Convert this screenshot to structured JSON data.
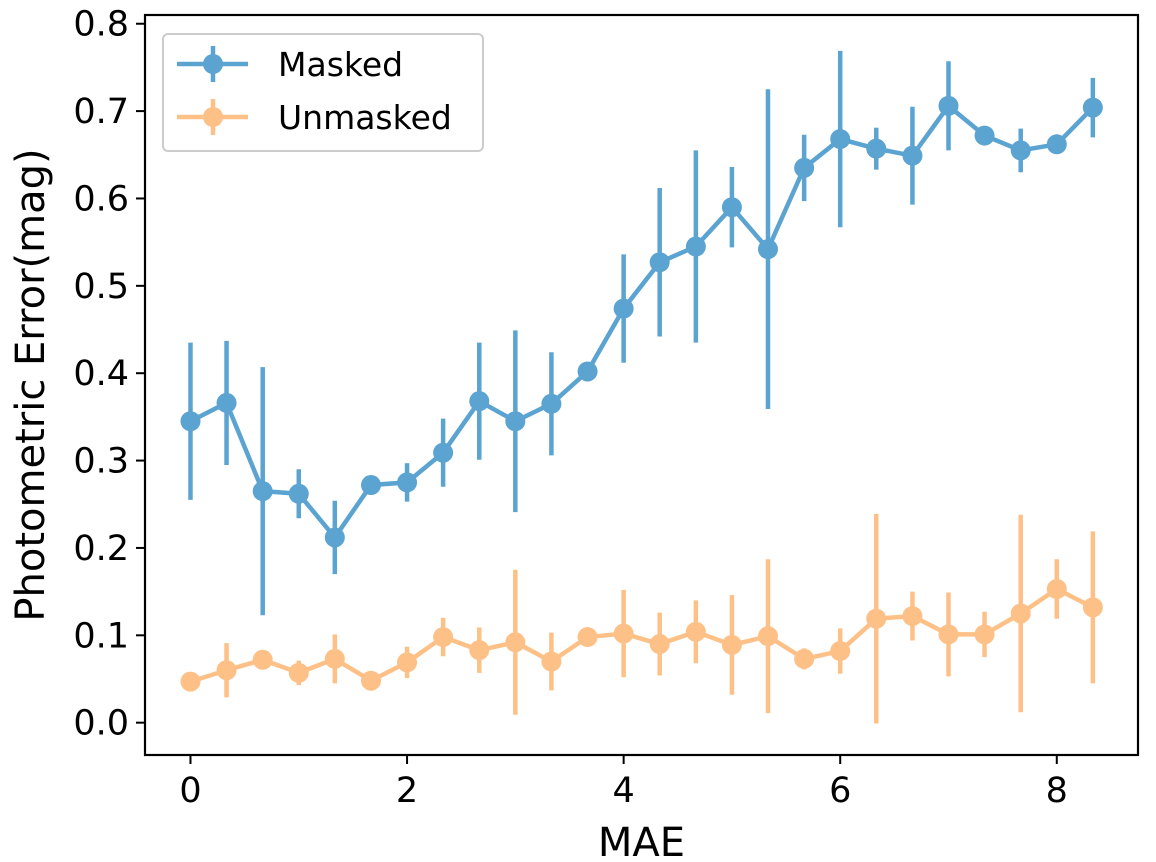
{
  "chart_data": {
    "type": "line",
    "xlabel": "MAE",
    "ylabel": "Photometric Error(mag)",
    "xlim": [
      -0.42,
      8.75
    ],
    "ylim": [
      -0.037,
      0.81
    ],
    "xticks": [
      0,
      2,
      4,
      6,
      8
    ],
    "yticks": [
      0.0,
      0.1,
      0.2,
      0.3,
      0.4,
      0.5,
      0.6,
      0.7,
      0.8
    ],
    "ytick_labels": [
      "0.0",
      "0.1",
      "0.2",
      "0.3",
      "0.4",
      "0.5",
      "0.6",
      "0.7",
      "0.8"
    ],
    "grid": false,
    "legend_position": "top-left",
    "x": [
      0,
      0.333,
      0.667,
      1.0,
      1.333,
      1.667,
      2.0,
      2.333,
      2.667,
      3.0,
      3.333,
      3.667,
      4.0,
      4.333,
      4.667,
      5.0,
      5.333,
      5.667,
      6.0,
      6.333,
      6.667,
      7.0,
      7.333,
      7.667,
      8.0,
      8.333
    ],
    "series": [
      {
        "name": "Masked",
        "color": "#5ba3d0",
        "values": [
          0.345,
          0.366,
          0.265,
          0.262,
          0.212,
          0.272,
          0.275,
          0.309,
          0.368,
          0.345,
          0.365,
          0.402,
          0.474,
          0.527,
          0.545,
          0.59,
          0.542,
          0.635,
          0.668,
          0.657,
          0.649,
          0.706,
          0.672,
          0.655,
          0.662,
          0.704
        ],
        "errors": [
          0.09,
          0.071,
          0.142,
          0.028,
          0.042,
          0.01,
          0.022,
          0.039,
          0.067,
          0.104,
          0.059,
          0.01,
          0.062,
          0.085,
          0.11,
          0.046,
          0.183,
          0.038,
          0.101,
          0.024,
          0.056,
          0.051,
          0.01,
          0.025,
          0.01,
          0.034
        ]
      },
      {
        "name": "Unmasked",
        "color": "#fdc188",
        "values": [
          0.047,
          0.06,
          0.072,
          0.057,
          0.073,
          0.048,
          0.069,
          0.098,
          0.083,
          0.092,
          0.07,
          0.098,
          0.102,
          0.09,
          0.104,
          0.089,
          0.099,
          0.073,
          0.082,
          0.119,
          0.122,
          0.101,
          0.101,
          0.125,
          0.153,
          0.132
        ],
        "errors": [
          0.008,
          0.031,
          0.01,
          0.014,
          0.028,
          0.008,
          0.018,
          0.022,
          0.026,
          0.083,
          0.033,
          0.008,
          0.05,
          0.036,
          0.036,
          0.057,
          0.088,
          0.012,
          0.026,
          0.12,
          0.028,
          0.048,
          0.026,
          0.113,
          0.034,
          0.087
        ]
      }
    ]
  }
}
